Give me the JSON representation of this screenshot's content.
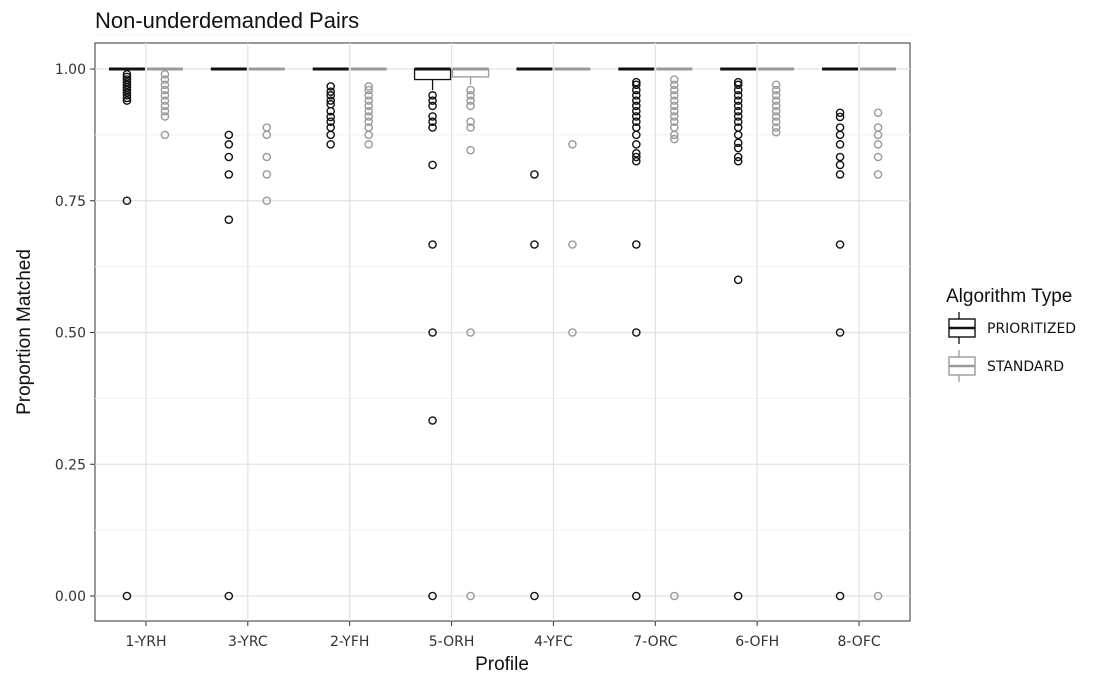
{
  "chart_data": {
    "type": "box",
    "title": "Non-underdemanded Pairs",
    "xlabel": "Profile",
    "ylabel": "Proportion Matched",
    "ylim": [
      0,
      1
    ],
    "yticks": [
      "0.00",
      "0.25",
      "0.50",
      "0.75",
      "1.00"
    ],
    "grid": true,
    "legend": {
      "title": "Algorithm Type",
      "placement": "right",
      "entries": [
        "PRIORITIZED",
        "STANDARD"
      ]
    },
    "colors": {
      "PRIORITIZED": "#111111",
      "STANDARD": "#9a9a9a"
    },
    "categories": [
      "1-YRH",
      "3-YRC",
      "2-YFH",
      "5-ORH",
      "4-YFC",
      "7-ORC",
      "6-OFH",
      "8-OFC"
    ],
    "series": [
      {
        "name": "PRIORITIZED",
        "boxes": [
          {
            "q1": 1.0,
            "median": 1.0,
            "q3": 1.0,
            "whisker_low": 1.0,
            "whisker_high": 1.0,
            "outliers": [
              0.99,
              0.985,
              0.98,
              0.975,
              0.97,
              0.965,
              0.96,
              0.955,
              0.95,
              0.945,
              0.94,
              0.75,
              0.0
            ]
          },
          {
            "q1": 1.0,
            "median": 1.0,
            "q3": 1.0,
            "whisker_low": 1.0,
            "whisker_high": 1.0,
            "outliers": [
              0.875,
              0.857,
              0.833,
              0.8,
              0.714,
              0.0
            ]
          },
          {
            "q1": 1.0,
            "median": 1.0,
            "q3": 1.0,
            "whisker_low": 1.0,
            "whisker_high": 1.0,
            "outliers": [
              0.967,
              0.957,
              0.95,
              0.94,
              0.933,
              0.92,
              0.909,
              0.9,
              0.889,
              0.875,
              0.857
            ]
          },
          {
            "q1": 0.98,
            "median": 1.0,
            "q3": 1.0,
            "whisker_low": 0.96,
            "whisker_high": 1.0,
            "outliers": [
              0.95,
              0.94,
              0.93,
              0.91,
              0.9,
              0.889,
              0.818,
              0.667,
              0.5,
              0.333,
              0.0
            ]
          },
          {
            "q1": 1.0,
            "median": 1.0,
            "q3": 1.0,
            "whisker_low": 1.0,
            "whisker_high": 1.0,
            "outliers": [
              0.8,
              0.667,
              0.0
            ]
          },
          {
            "q1": 1.0,
            "median": 1.0,
            "q3": 1.0,
            "whisker_low": 1.0,
            "whisker_high": 1.0,
            "outliers": [
              0.975,
              0.97,
              0.96,
              0.95,
              0.94,
              0.93,
              0.92,
              0.91,
              0.9,
              0.889,
              0.875,
              0.857,
              0.84,
              0.833,
              0.825,
              0.667,
              0.5,
              0.0
            ]
          },
          {
            "q1": 1.0,
            "median": 1.0,
            "q3": 1.0,
            "whisker_low": 1.0,
            "whisker_high": 1.0,
            "outliers": [
              0.975,
              0.97,
              0.96,
              0.95,
              0.94,
              0.93,
              0.92,
              0.91,
              0.9,
              0.889,
              0.875,
              0.86,
              0.85,
              0.833,
              0.825,
              0.6,
              0.0
            ]
          },
          {
            "q1": 1.0,
            "median": 1.0,
            "q3": 1.0,
            "whisker_low": 1.0,
            "whisker_high": 1.0,
            "outliers": [
              0.917,
              0.909,
              0.889,
              0.875,
              0.857,
              0.833,
              0.818,
              0.8,
              0.667,
              0.5,
              0.0
            ]
          }
        ]
      },
      {
        "name": "STANDARD",
        "boxes": [
          {
            "q1": 1.0,
            "median": 1.0,
            "q3": 1.0,
            "whisker_low": 1.0,
            "whisker_high": 1.0,
            "outliers": [
              0.99,
              0.98,
              0.97,
              0.96,
              0.95,
              0.94,
              0.93,
              0.92,
              0.91,
              0.875
            ]
          },
          {
            "q1": 1.0,
            "median": 1.0,
            "q3": 1.0,
            "whisker_low": 1.0,
            "whisker_high": 1.0,
            "outliers": [
              0.889,
              0.875,
              0.833,
              0.8,
              0.75
            ]
          },
          {
            "q1": 1.0,
            "median": 1.0,
            "q3": 1.0,
            "whisker_low": 1.0,
            "whisker_high": 1.0,
            "outliers": [
              0.967,
              0.96,
              0.95,
              0.94,
              0.93,
              0.92,
              0.91,
              0.9,
              0.889,
              0.875,
              0.857
            ]
          },
          {
            "q1": 0.985,
            "median": 1.0,
            "q3": 1.0,
            "whisker_low": 0.97,
            "whisker_high": 1.0,
            "outliers": [
              0.96,
              0.95,
              0.94,
              0.93,
              0.9,
              0.889,
              0.846,
              0.5,
              0.0
            ]
          },
          {
            "q1": 1.0,
            "median": 1.0,
            "q3": 1.0,
            "whisker_low": 1.0,
            "whisker_high": 1.0,
            "outliers": [
              0.857,
              0.667,
              0.5
            ]
          },
          {
            "q1": 1.0,
            "median": 1.0,
            "q3": 1.0,
            "whisker_low": 1.0,
            "whisker_high": 1.0,
            "outliers": [
              0.98,
              0.97,
              0.96,
              0.95,
              0.94,
              0.93,
              0.92,
              0.91,
              0.9,
              0.889,
              0.875,
              0.867,
              0.0
            ]
          },
          {
            "q1": 1.0,
            "median": 1.0,
            "q3": 1.0,
            "whisker_low": 1.0,
            "whisker_high": 1.0,
            "outliers": [
              0.97,
              0.96,
              0.95,
              0.94,
              0.93,
              0.92,
              0.91,
              0.9,
              0.889,
              0.88
            ]
          },
          {
            "q1": 1.0,
            "median": 1.0,
            "q3": 1.0,
            "whisker_low": 1.0,
            "whisker_high": 1.0,
            "outliers": [
              0.917,
              0.889,
              0.875,
              0.857,
              0.833,
              0.8,
              0.0
            ]
          }
        ]
      }
    ]
  }
}
